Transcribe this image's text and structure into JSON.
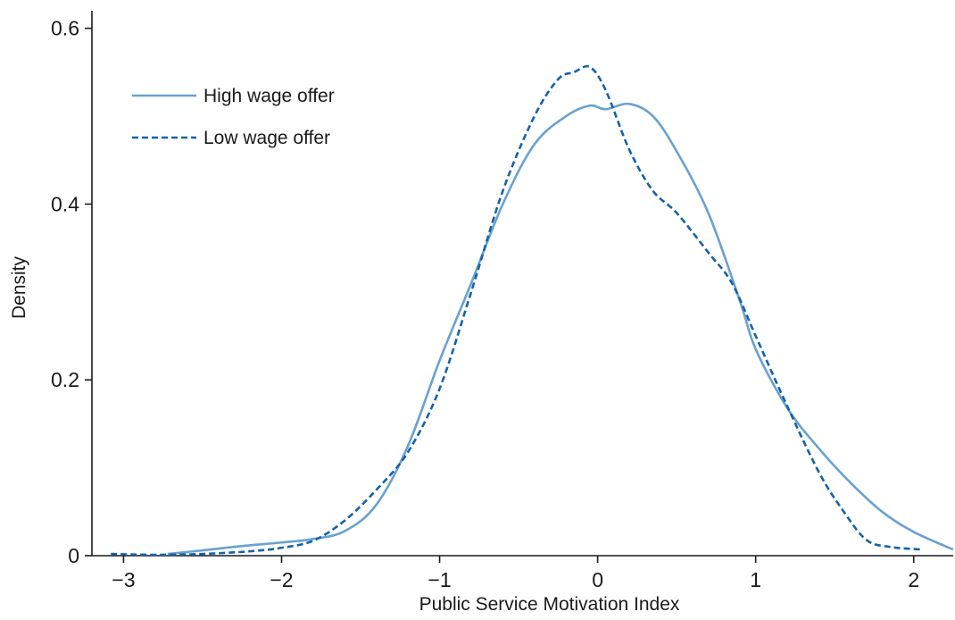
{
  "chart_data": {
    "type": "line",
    "title": "",
    "xlabel": "Public Service Motivation Index",
    "ylabel": "Density",
    "xlim": [
      -3.2,
      2.25
    ],
    "ylim": [
      0,
      0.62
    ],
    "xticks": [
      -3,
      -2,
      -1,
      0,
      1,
      2
    ],
    "xtick_labels": [
      "−3",
      "−2",
      "−1",
      "0",
      "1",
      "2"
    ],
    "yticks": [
      0,
      0.2,
      0.4,
      0.6
    ],
    "ytick_labels": [
      "0",
      "0.2",
      "0.4",
      "0.6"
    ],
    "grid": false,
    "legend_position": "top-left",
    "series": [
      {
        "name": "High wage offer",
        "color": "#6aa1d0",
        "dash": "solid",
        "x": [
          -2.72,
          -2.5,
          -2.25,
          -2.0,
          -1.8,
          -1.6,
          -1.4,
          -1.2,
          -1.0,
          -0.8,
          -0.6,
          -0.4,
          -0.2,
          -0.05,
          0.05,
          0.2,
          0.35,
          0.5,
          0.7,
          0.9,
          1.0,
          1.2,
          1.4,
          1.6,
          1.8,
          2.0,
          2.25
        ],
        "y": [
          0.002,
          0.006,
          0.011,
          0.015,
          0.019,
          0.028,
          0.058,
          0.125,
          0.222,
          0.31,
          0.4,
          0.468,
          0.5,
          0.512,
          0.508,
          0.514,
          0.5,
          0.46,
          0.39,
          0.29,
          0.235,
          0.168,
          0.122,
          0.083,
          0.05,
          0.027,
          0.007
        ]
      },
      {
        "name": "Low wage offer",
        "color": "#1662a8",
        "dash": "dashed",
        "x": [
          -3.08,
          -2.8,
          -2.5,
          -2.2,
          -2.0,
          -1.8,
          -1.6,
          -1.4,
          -1.2,
          -1.0,
          -0.8,
          -0.6,
          -0.4,
          -0.25,
          -0.15,
          -0.05,
          0.05,
          0.2,
          0.35,
          0.5,
          0.7,
          0.85,
          1.0,
          1.2,
          1.4,
          1.55,
          1.7,
          1.85,
          2.05
        ],
        "y": [
          0.002,
          0.001,
          0.002,
          0.005,
          0.009,
          0.017,
          0.04,
          0.075,
          0.118,
          0.19,
          0.3,
          0.415,
          0.5,
          0.542,
          0.55,
          0.556,
          0.53,
          0.462,
          0.415,
          0.39,
          0.345,
          0.31,
          0.25,
          0.17,
          0.095,
          0.052,
          0.018,
          0.01,
          0.007
        ]
      }
    ]
  }
}
